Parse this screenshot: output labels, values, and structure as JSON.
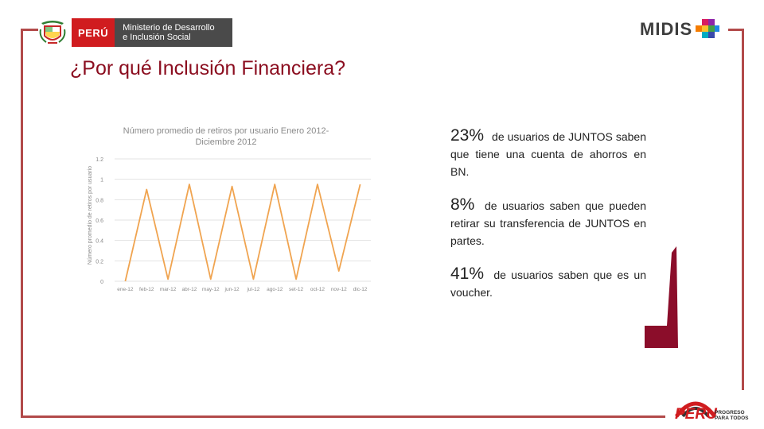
{
  "header": {
    "gov_label": "PERÚ",
    "ministry_line1": "Ministerio de Desarrollo",
    "ministry_line2": "e Inclusión Social",
    "brand": "MIDIS"
  },
  "slide": {
    "title": "¿Por qué Inclusión Financiera?"
  },
  "stats": [
    {
      "pct": "23%",
      "text": "de usuarios de JUNTOS saben que tiene una cuenta de ahorros en BN."
    },
    {
      "pct": "8%",
      "text": "de usuarios saben que pueden retirar su transferencia de JUNTOS en partes."
    },
    {
      "pct": "41%",
      "text": "de usuarios saben que es un voucher."
    }
  ],
  "footer_logo": {
    "word": "PERU",
    "tag_line1": "PROGRESO",
    "tag_line2": "PARA TODOS"
  },
  "colors": {
    "frame": "#b24a4a",
    "title": "#8b0d1f",
    "series": "#f0a450",
    "ribbon": "#8b0d2a",
    "peru_red": "#d01c1f"
  },
  "chart_data": {
    "type": "line",
    "title": "Número promedio de retiros por usuario Enero 2012-Diciembre 2012",
    "ylabel": "Número promedio de retiros por usuario",
    "xlabel": "",
    "categories": [
      "ene-12",
      "feb-12",
      "mar-12",
      "abr-12",
      "may-12",
      "jun-12",
      "jul-12",
      "ago-12",
      "set-12",
      "oct-12",
      "nov-12",
      "dic-12"
    ],
    "yticks": [
      "0",
      "0.2",
      "0.4",
      "0.6",
      "0.8",
      "1",
      "1.2"
    ],
    "ylim": [
      0,
      1.2
    ],
    "grid": true,
    "series": [
      {
        "values": [
          0.0,
          0.9,
          0.02,
          0.95,
          0.02,
          0.93,
          0.02,
          0.95,
          0.02,
          0.95,
          0.1,
          0.95
        ]
      }
    ]
  }
}
